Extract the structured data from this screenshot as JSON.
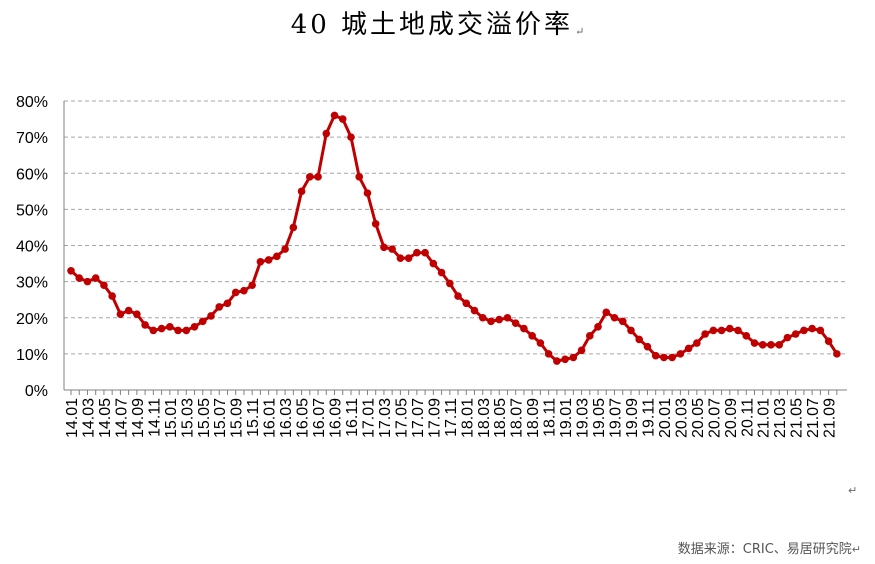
{
  "title": "40 城土地成交溢价率",
  "return_mark": "↵",
  "source": "数据来源：CRIC、易居研究院",
  "colors": {
    "series": "#C00000",
    "grid": "#A6A6A6",
    "axis": "#808080"
  },
  "chart_data": {
    "type": "line",
    "title": "40 城土地成交溢价率",
    "xlabel": "",
    "ylabel": "",
    "ylim": [
      0,
      80
    ],
    "yticks": [
      "0%",
      "10%",
      "20%",
      "30%",
      "40%",
      "50%",
      "60%",
      "70%",
      "80%"
    ],
    "grid": true,
    "legend": "none",
    "x_tick_labels": [
      "14.01",
      "14.03",
      "14.05",
      "14.07",
      "14.09",
      "14.11",
      "15.01",
      "15.03",
      "15.05",
      "15.07",
      "15.09",
      "15.11",
      "16.01",
      "16.03",
      "16.05",
      "16.07",
      "16.09",
      "16.11",
      "17.01",
      "17.03",
      "17.05",
      "17.07",
      "17.09",
      "17.11",
      "18.01",
      "18.03",
      "18.05",
      "18.07",
      "18.09",
      "18.11",
      "19.01",
      "19.03",
      "19.05",
      "19.07",
      "19.09",
      "19.11",
      "20.01",
      "20.03",
      "20.05",
      "20.07",
      "20.09",
      "20.11",
      "21.01",
      "21.03",
      "21.05",
      "21.07",
      "21.09"
    ],
    "x_start": "2014-01",
    "x_end": "2021-10",
    "series": [
      {
        "values": [
          33,
          31,
          30,
          31,
          29,
          26,
          21,
          22,
          21,
          18,
          16.5,
          17,
          17.5,
          16.5,
          16.5,
          17.5,
          19,
          20.5,
          23,
          24,
          27,
          27.5,
          29,
          35.5,
          36,
          37,
          39,
          45,
          55,
          59,
          59,
          71,
          76,
          75,
          70,
          59,
          54.5,
          46,
          39.5,
          39,
          36.5,
          36.5,
          38,
          38,
          35,
          32.5,
          29.5,
          26,
          24,
          22,
          20,
          19,
          19.5,
          20,
          18.5,
          17,
          15,
          13,
          10,
          8,
          8.5,
          9,
          11,
          15,
          17.5,
          21.5,
          20,
          19,
          16.5,
          14,
          12,
          9.5,
          9,
          9,
          10,
          11.5,
          13,
          15.5,
          16.5,
          16.5,
          17,
          16.5,
          15,
          13,
          12.5,
          12.5,
          12.5,
          14.5,
          15.5,
          16.5,
          17,
          16.5,
          13.5,
          10
        ]
      }
    ]
  }
}
